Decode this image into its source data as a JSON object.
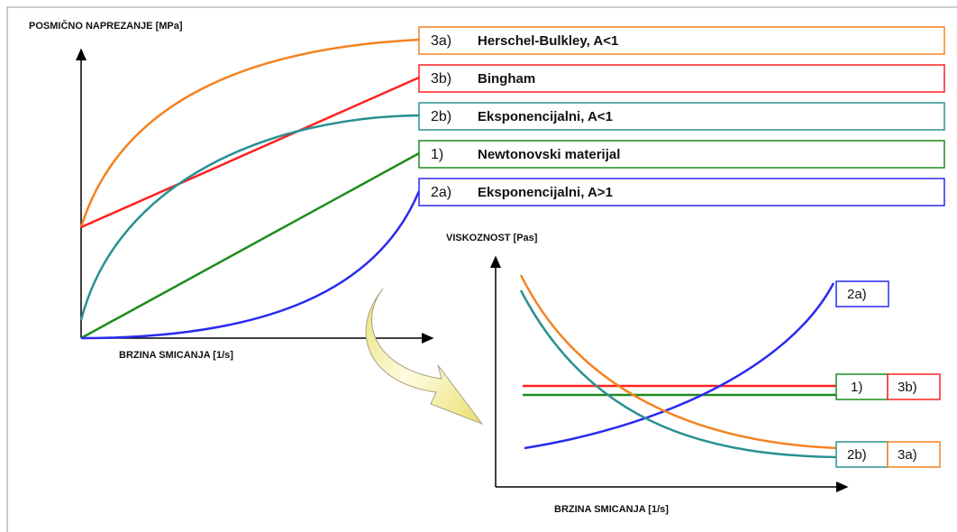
{
  "stress_chart": {
    "y_label": "POSMIČNO NAPREZANJE  [MPa]",
    "x_label": "BRZINA SMICANJA [1/s]"
  },
  "legend": [
    {
      "code": "3a)",
      "label": "Herschel-Bulkley, A<1"
    },
    {
      "code": "3b)",
      "label": "Bingham"
    },
    {
      "code": "2b)",
      "label": "Eksponencijalni, A<1"
    },
    {
      "code": "1)",
      "label": "Newtonovski materijal"
    },
    {
      "code": "2a)",
      "label": "Eksponencijalni, A>1"
    }
  ],
  "viscosity_chart": {
    "y_label": "VISKOZNOST [Pas]",
    "x_label": "BRZINA SMICANJA [1/s]",
    "tags": [
      "2a)",
      "1)",
      "3b)",
      "2b)",
      "3a)"
    ]
  }
}
